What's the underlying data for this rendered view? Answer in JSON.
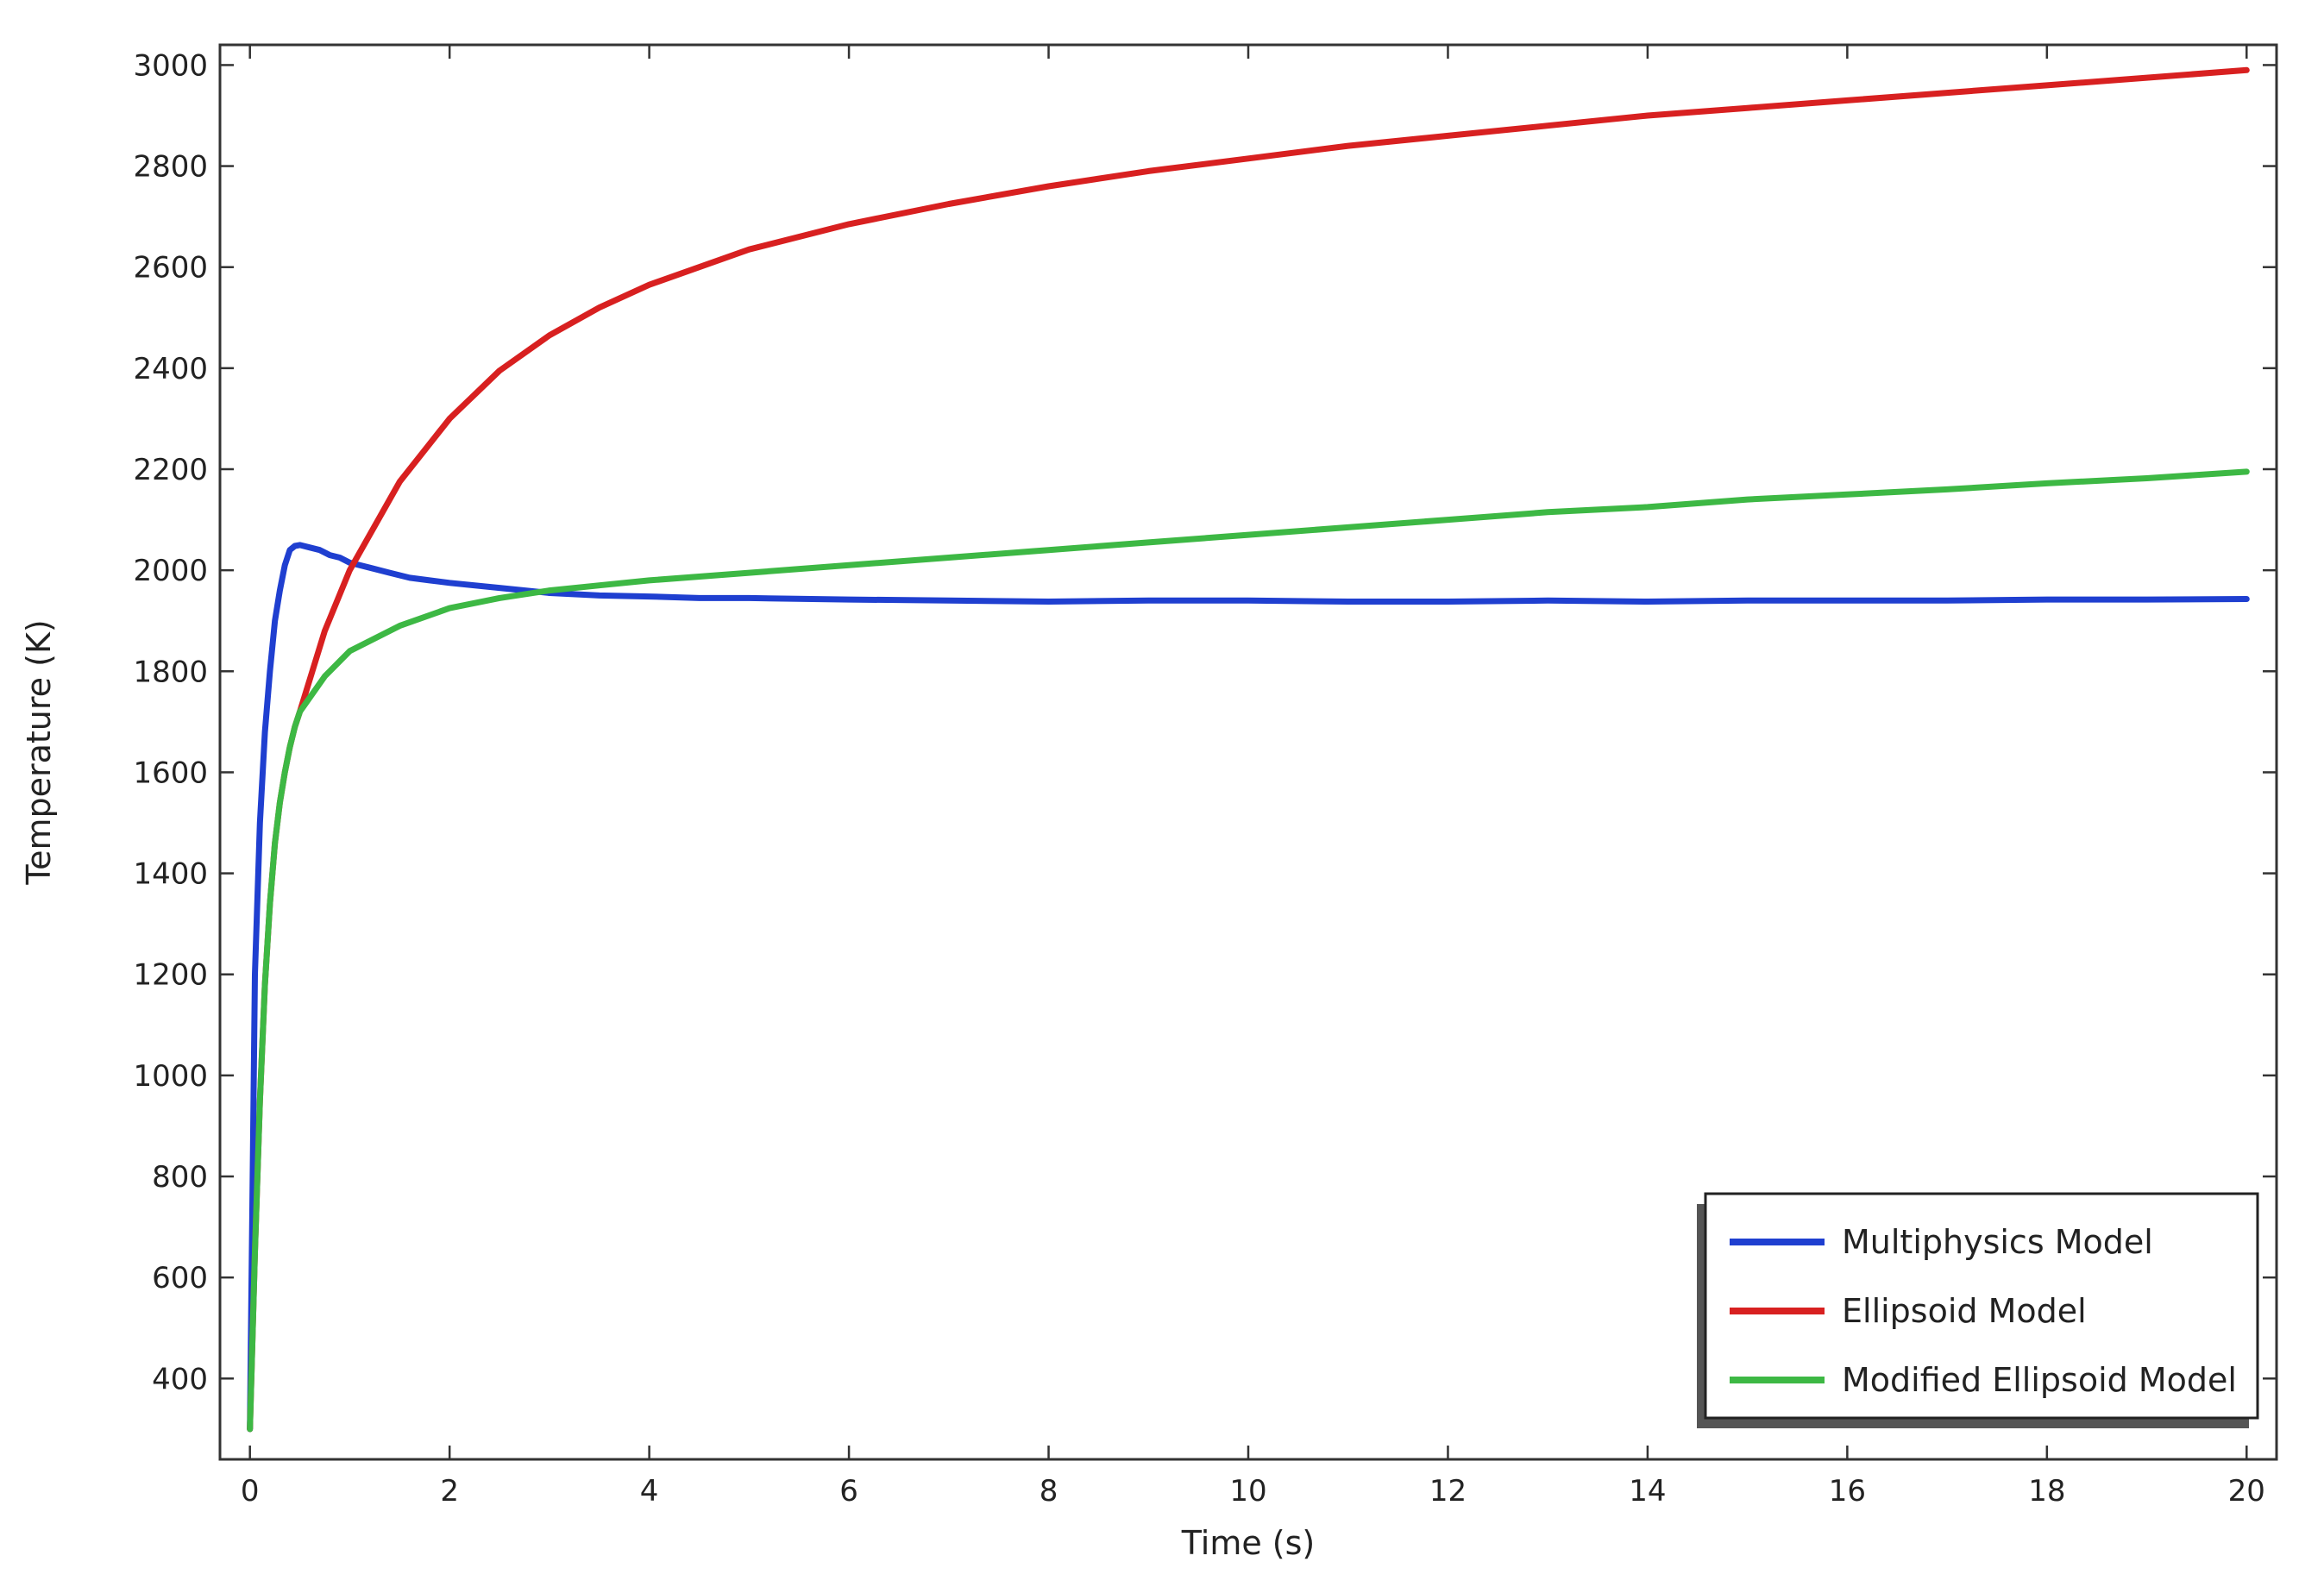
{
  "chart_data": {
    "type": "line",
    "title": "",
    "xlabel": "Time (s)",
    "ylabel": "Temperature (K)",
    "xlim": [
      -0.3,
      20.3
    ],
    "ylim": [
      240,
      3040
    ],
    "xticks": [
      0,
      2,
      4,
      6,
      8,
      10,
      12,
      14,
      16,
      18,
      20
    ],
    "yticks": [
      400,
      600,
      800,
      1000,
      1200,
      1400,
      1600,
      1800,
      2000,
      2200,
      2400,
      2600,
      2800,
      3000
    ],
    "grid": false,
    "legend_position": "bottom-right",
    "series": [
      {
        "name": "Multiphysics Model",
        "color": "#1f3fd0",
        "x": [
          0,
          0.05,
          0.1,
          0.15,
          0.2,
          0.25,
          0.3,
          0.35,
          0.4,
          0.45,
          0.5,
          0.6,
          0.7,
          0.8,
          0.9,
          1.0,
          1.2,
          1.4,
          1.6,
          1.8,
          2.0,
          2.5,
          3.0,
          3.5,
          4.0,
          4.5,
          5.0,
          6.0,
          7.0,
          8.0,
          9.0,
          10.0,
          11.0,
          12.0,
          13.0,
          14.0,
          15.0,
          16.0,
          17.0,
          18.0,
          19.0,
          20.0
        ],
        "y": [
          300,
          1200,
          1500,
          1680,
          1800,
          1900,
          1960,
          2010,
          2040,
          2048,
          2050,
          2045,
          2040,
          2030,
          2025,
          2015,
          2005,
          1995,
          1985,
          1980,
          1975,
          1965,
          1955,
          1950,
          1948,
          1945,
          1945,
          1942,
          1940,
          1938,
          1940,
          1940,
          1938,
          1938,
          1940,
          1938,
          1940,
          1940,
          1940,
          1942,
          1942,
          1943
        ]
      },
      {
        "name": "Ellipsoid Model",
        "color": "#d82020",
        "x": [
          0,
          0.05,
          0.1,
          0.15,
          0.2,
          0.25,
          0.3,
          0.35,
          0.4,
          0.45,
          0.5,
          0.75,
          1.0,
          1.5,
          2.0,
          2.5,
          3.0,
          3.5,
          4.0,
          5.0,
          6.0,
          7.0,
          8.0,
          9.0,
          10.0,
          11.0,
          12.0,
          13.0,
          14.0,
          15.0,
          16.0,
          17.0,
          18.0,
          19.0,
          20.0
        ],
        "y": [
          300,
          650,
          950,
          1180,
          1340,
          1460,
          1540,
          1600,
          1650,
          1690,
          1720,
          1880,
          2000,
          2175,
          2300,
          2395,
          2465,
          2520,
          2565,
          2635,
          2685,
          2725,
          2760,
          2790,
          2815,
          2840,
          2860,
          2880,
          2900,
          2915,
          2930,
          2945,
          2960,
          2975,
          2990
        ]
      },
      {
        "name": "Modified Ellipsoid Model",
        "color": "#3db844",
        "x": [
          0,
          0.05,
          0.1,
          0.15,
          0.2,
          0.25,
          0.3,
          0.35,
          0.4,
          0.45,
          0.5,
          0.75,
          1.0,
          1.5,
          2.0,
          2.5,
          3.0,
          3.5,
          4.0,
          5.0,
          6.0,
          7.0,
          8.0,
          9.0,
          10.0,
          11.0,
          12.0,
          13.0,
          14.0,
          15.0,
          16.0,
          17.0,
          18.0,
          19.0,
          20.0
        ],
        "y": [
          300,
          650,
          950,
          1180,
          1340,
          1460,
          1540,
          1600,
          1650,
          1690,
          1720,
          1790,
          1840,
          1890,
          1925,
          1945,
          1960,
          1970,
          1980,
          1995,
          2010,
          2025,
          2040,
          2055,
          2070,
          2085,
          2100,
          2115,
          2125,
          2140,
          2150,
          2160,
          2172,
          2182,
          2195
        ]
      }
    ]
  }
}
